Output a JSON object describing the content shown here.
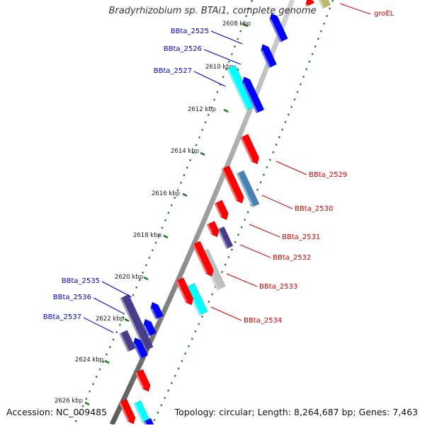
{
  "title": "Bradyrhizobium sp. BTAi1, complete genome",
  "accession_text": "Accession: NC_009485",
  "topology_text": "Topology: circular; Length: 8,264,687 bp; Genes: 7,463",
  "colors": {
    "forward_label": "#0000cc",
    "reverse_label": "#cc0000",
    "backbone": "#8c8c8c",
    "tick_marks": "#1a7a1a",
    "gene_red": "#ff0000",
    "gene_blue": "#0000ff",
    "gene_cyan": "#00ffff",
    "gene_steel": "#4682b4",
    "gene_slate": "#483d8b",
    "gene_grey": "#c0c0c0",
    "gene_olive": "#bdb76b"
  },
  "scale_ticks": [
    "2608 kbp",
    "2610 kbp",
    "2612 kbp",
    "2614 kbp",
    "2616 kbp",
    "2618 kbp",
    "2620 kbp",
    "2622 kbp",
    "2624 kbp",
    "2626 kbp"
  ],
  "genes": [
    {
      "label": "groEL",
      "strand": "reverse",
      "color": "#bdb76b"
    },
    {
      "label": "",
      "strand": "reverse",
      "color": "#ff0000"
    },
    {
      "label": "",
      "strand": "forward",
      "color": "#0000ff"
    },
    {
      "label": "BBta_2525",
      "strand": "forward",
      "color": "#0000ff"
    },
    {
      "label": "BBta_2526",
      "strand": "forward",
      "color": "#0000ff"
    },
    {
      "label": "BBta_2527",
      "strand": "forward",
      "color": "#00ffff"
    },
    {
      "label": "",
      "strand": "forward",
      "color": "#0000ff"
    },
    {
      "label": "BBta_2529",
      "strand": "reverse",
      "color": "#ff0000"
    },
    {
      "label": "BBta_2530",
      "strand": "reverse",
      "color": "#4682b4"
    },
    {
      "label": "BBta_2531",
      "strand": "reverse",
      "color": "#ff0000"
    },
    {
      "label": "BBta_2532",
      "strand": "reverse",
      "color": "#483d8b"
    },
    {
      "label": "BBta_2533",
      "strand": "reverse",
      "color": "#c0c0c0"
    },
    {
      "label": "BBta_2534",
      "strand": "reverse",
      "color": "#00ffff"
    },
    {
      "label": "BBta_2535",
      "strand": "forward",
      "color": "#483d8b"
    },
    {
      "label": "BBta_2536",
      "strand": "forward",
      "color": "#0000ff"
    },
    {
      "label": "BBta_2537",
      "strand": "forward",
      "color": "#0000ff"
    }
  ]
}
